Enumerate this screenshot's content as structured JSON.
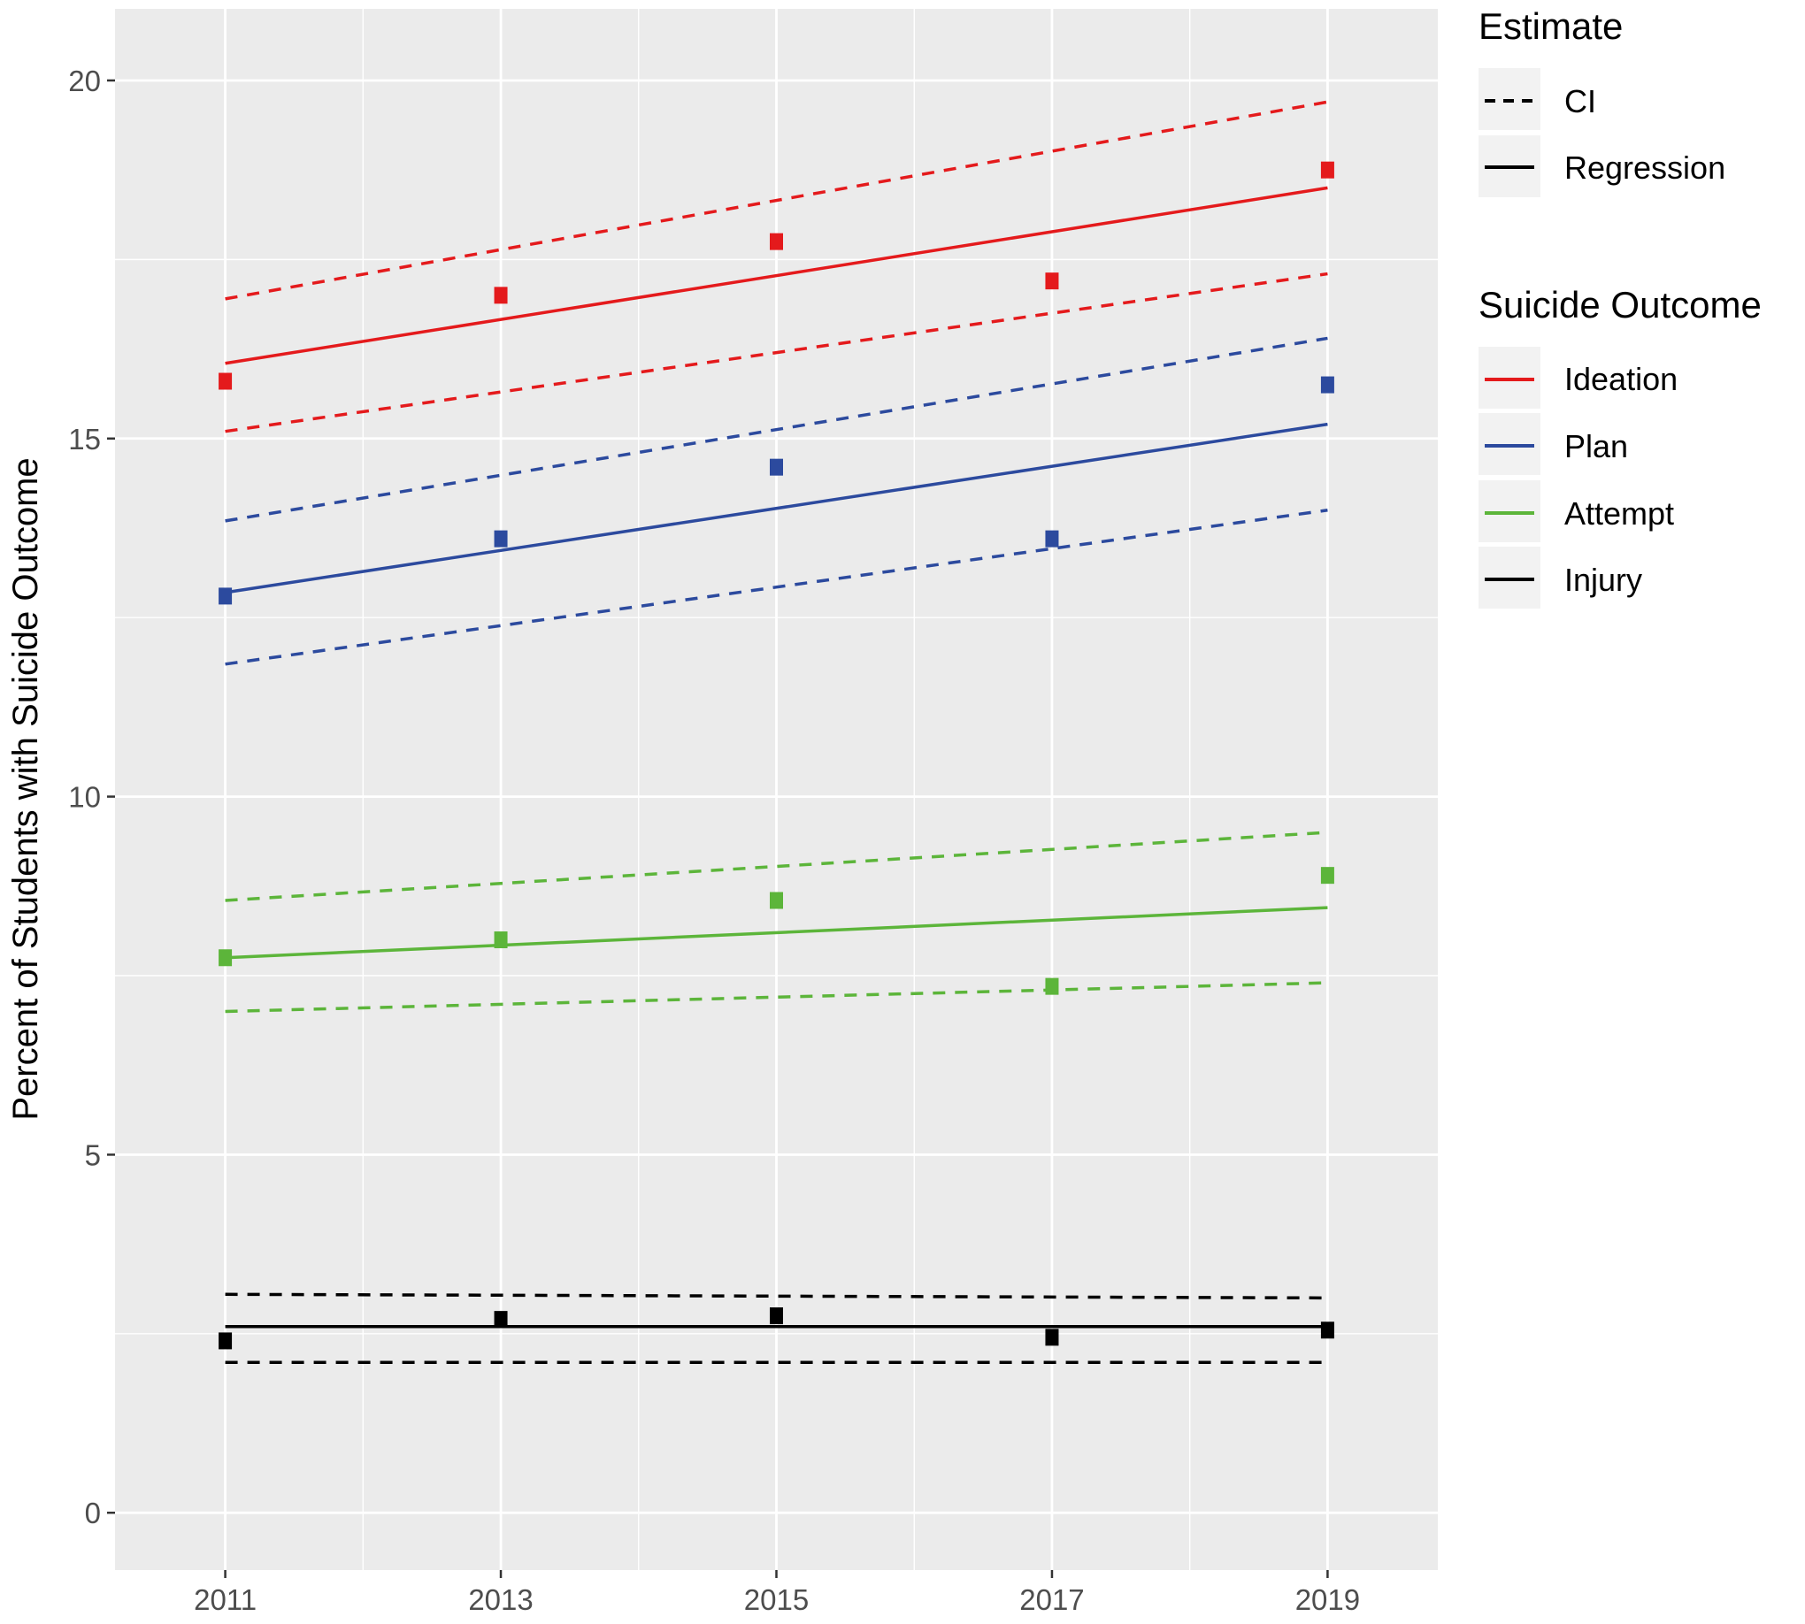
{
  "chart_data": {
    "type": "line",
    "ylabel": "Percent of Students with Suicide Outcome",
    "xlabel": "",
    "x": [
      2011,
      2013,
      2015,
      2017,
      2019
    ],
    "x_tick_labels": [
      "2011",
      "2013",
      "2015",
      "2017",
      "2019"
    ],
    "xlim": [
      2010.2,
      2019.8
    ],
    "y_ticks": [
      0,
      5,
      10,
      15,
      20
    ],
    "y_tick_labels": [
      "0",
      "5",
      "10",
      "15",
      "20"
    ],
    "ylim": [
      -0.8,
      21.0
    ],
    "grid": true,
    "legend_position": "right",
    "legends": [
      {
        "title": "Estimate",
        "entries": [
          {
            "label": "CI",
            "linestyle": "dashed"
          },
          {
            "label": "Regression",
            "linestyle": "solid"
          }
        ]
      },
      {
        "title": "Suicide Outcome",
        "entries": [
          {
            "label": "Ideation",
            "color": "#e41a1c"
          },
          {
            "label": "Plan",
            "color": "#2c4a9e"
          },
          {
            "label": "Attempt",
            "color": "#5cb53a"
          },
          {
            "label": "Injury",
            "color": "#000000"
          }
        ]
      }
    ],
    "series": [
      {
        "name": "Ideation",
        "color": "#e41a1c",
        "points": [
          15.8,
          17.0,
          17.75,
          17.2,
          18.75
        ],
        "regression": [
          16.05,
          18.5
        ],
        "ci_upper": [
          16.95,
          19.7
        ],
        "ci_lower": [
          15.1,
          17.3
        ]
      },
      {
        "name": "Plan",
        "color": "#2c4a9e",
        "points": [
          12.8,
          13.6,
          14.6,
          13.6,
          15.75
        ],
        "regression": [
          12.85,
          15.2
        ],
        "ci_upper": [
          13.85,
          16.4
        ],
        "ci_lower": [
          11.85,
          14.0
        ]
      },
      {
        "name": "Attempt",
        "color": "#5cb53a",
        "points": [
          7.75,
          8.0,
          8.55,
          7.35,
          8.9
        ],
        "regression": [
          7.75,
          8.45
        ],
        "ci_upper": [
          8.55,
          9.5
        ],
        "ci_lower": [
          7.0,
          7.4
        ]
      },
      {
        "name": "Injury",
        "color": "#000000",
        "points": [
          2.4,
          2.7,
          2.75,
          2.45,
          2.55
        ],
        "regression": [
          2.6,
          2.6
        ],
        "ci_upper": [
          3.05,
          3.0
        ],
        "ci_lower": [
          2.1,
          2.1
        ]
      }
    ]
  }
}
